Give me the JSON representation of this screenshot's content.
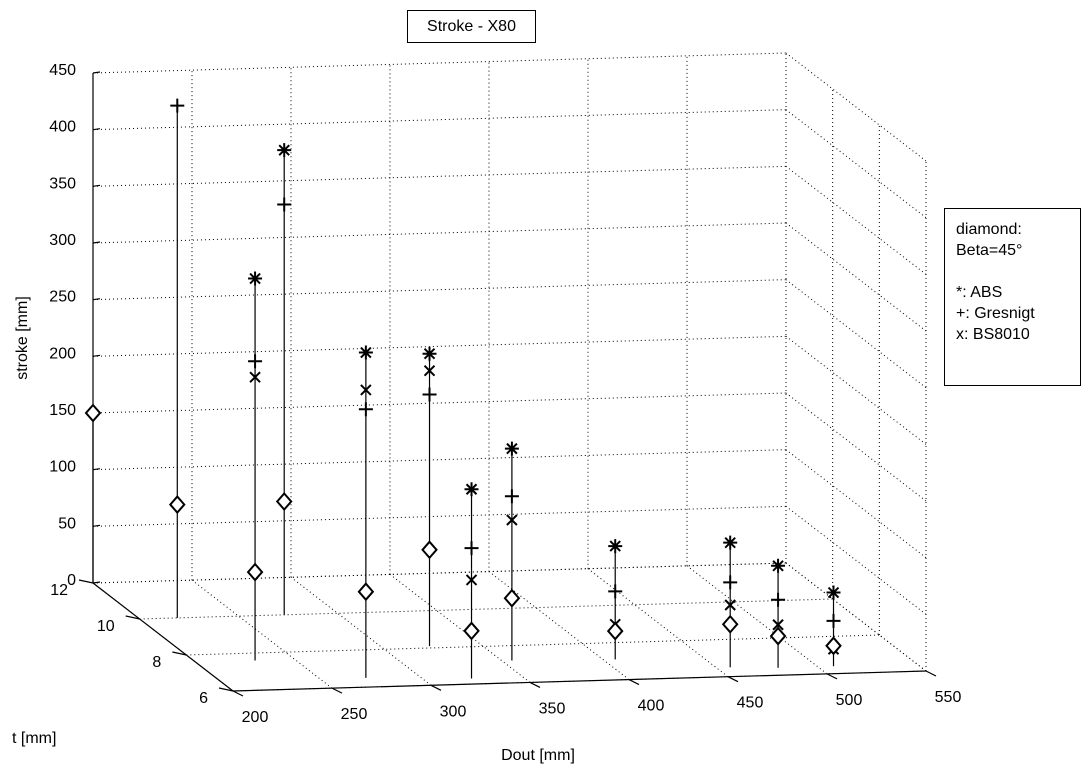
{
  "chart_data": {
    "type": "scatter",
    "title": "Stroke - X80",
    "xlabel": "Dout [mm]",
    "ylabel": "t [mm]",
    "zlabel": "stroke [mm]",
    "xlim": [
      200,
      550
    ],
    "ylim": [
      6,
      12
    ],
    "zlim": [
      0,
      450
    ],
    "x_ticks": [
      200,
      250,
      300,
      350,
      400,
      450,
      500,
      550
    ],
    "y_ticks": [
      6,
      8,
      10,
      12
    ],
    "z_ticks": [
      0,
      50,
      100,
      150,
      200,
      250,
      300,
      350,
      400,
      450
    ],
    "grid": true,
    "legend": {
      "position": "right",
      "lines": [
        "diamond:",
        "Beta=45°",
        "",
        "*: ABS",
        "+: Gresnigt",
        "x: BS8010"
      ]
    },
    "series": [
      {
        "name": "ABS",
        "marker": "*",
        "points": [
          {
            "dout": 230,
            "t": 7.6,
            "stroke": 337
          },
          {
            "dout": 273,
            "t": 10,
            "stroke": 410
          },
          {
            "dout": 273,
            "t": 6.5,
            "stroke": 287
          },
          {
            "dout": 324,
            "t": 8.1,
            "stroke": 258
          },
          {
            "dout": 324,
            "t": 6.3,
            "stroke": 167
          },
          {
            "dout": 355,
            "t": 7.2,
            "stroke": 187
          },
          {
            "dout": 406,
            "t": 7.1,
            "stroke": 100
          },
          {
            "dout": 457,
            "t": 6.5,
            "stroke": 110
          },
          {
            "dout": 480,
            "t": 6.4,
            "stroke": 90
          },
          {
            "dout": 508,
            "t": 6.4,
            "stroke": 65
          }
        ]
      },
      {
        "name": "Gresnigt",
        "marker": "+",
        "points": [
          {
            "dout": 219,
            "t": 10,
            "stroke": 452
          },
          {
            "dout": 230,
            "t": 7.6,
            "stroke": 264
          },
          {
            "dout": 273,
            "t": 10,
            "stroke": 362
          },
          {
            "dout": 273,
            "t": 6.5,
            "stroke": 237
          },
          {
            "dout": 324,
            "t": 8.1,
            "stroke": 222
          },
          {
            "dout": 324,
            "t": 6.3,
            "stroke": 115
          },
          {
            "dout": 355,
            "t": 7.2,
            "stroke": 145
          },
          {
            "dout": 406,
            "t": 7.1,
            "stroke": 60
          },
          {
            "dout": 457,
            "t": 6.5,
            "stroke": 75
          },
          {
            "dout": 480,
            "t": 6.4,
            "stroke": 60
          },
          {
            "dout": 508,
            "t": 6.4,
            "stroke": 40
          }
        ]
      },
      {
        "name": "BS8010",
        "marker": "x",
        "points": [
          {
            "dout": 230,
            "t": 7.6,
            "stroke": 250
          },
          {
            "dout": 273,
            "t": 6.5,
            "stroke": 254
          },
          {
            "dout": 324,
            "t": 8.1,
            "stroke": 243
          },
          {
            "dout": 324,
            "t": 6.3,
            "stroke": 87
          },
          {
            "dout": 355,
            "t": 7.2,
            "stroke": 124
          },
          {
            "dout": 406,
            "t": 7.1,
            "stroke": 31
          },
          {
            "dout": 457,
            "t": 6.5,
            "stroke": 55
          },
          {
            "dout": 480,
            "t": 6.4,
            "stroke": 38
          },
          {
            "dout": 508,
            "t": 6.4,
            "stroke": 15
          }
        ]
      },
      {
        "name": "Beta=45°",
        "marker": "diamond",
        "points": [
          {
            "dout": 200,
            "t": 12,
            "stroke": 150
          },
          {
            "dout": 219,
            "t": 10,
            "stroke": 100
          },
          {
            "dout": 230,
            "t": 7.6,
            "stroke": 78
          },
          {
            "dout": 273,
            "t": 10,
            "stroke": 100
          },
          {
            "dout": 273,
            "t": 6.5,
            "stroke": 76
          },
          {
            "dout": 324,
            "t": 8.1,
            "stroke": 85
          },
          {
            "dout": 324,
            "t": 6.3,
            "stroke": 42
          },
          {
            "dout": 355,
            "t": 7.2,
            "stroke": 55
          },
          {
            "dout": 406,
            "t": 7.1,
            "stroke": 25
          },
          {
            "dout": 457,
            "t": 6.5,
            "stroke": 38
          },
          {
            "dout": 480,
            "t": 6.4,
            "stroke": 28
          },
          {
            "dout": 508,
            "t": 6.4,
            "stroke": 18
          }
        ]
      }
    ]
  }
}
